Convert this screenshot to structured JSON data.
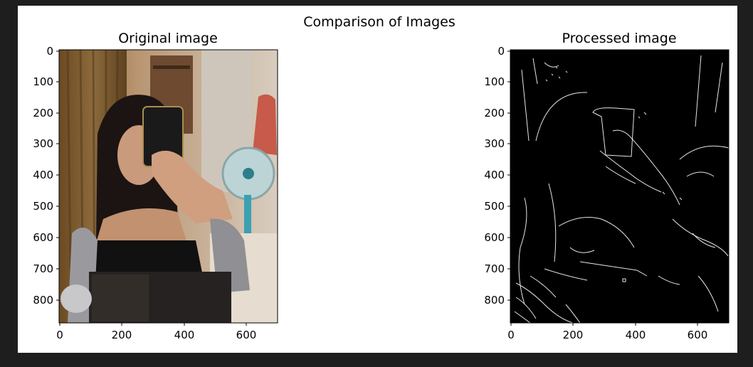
{
  "figure": {
    "suptitle": "Comparison of Images",
    "panels": [
      {
        "title": "Original image",
        "kind": "photo",
        "image_description_icon": "photo-placeholder",
        "x_ticks": [
          "0",
          "200",
          "400",
          "600"
        ],
        "y_ticks": [
          "0",
          "100",
          "200",
          "300",
          "400",
          "500",
          "600",
          "700",
          "800"
        ]
      },
      {
        "title": "Processed image",
        "kind": "edges",
        "x_ticks": [
          "0",
          "200",
          "400",
          "600"
        ],
        "y_ticks": [
          "0",
          "100",
          "200",
          "300",
          "400",
          "500",
          "600",
          "700",
          "800"
        ]
      }
    ]
  },
  "colors": {
    "window_bg": "#1e1e1e",
    "figure_bg": "#ffffff",
    "edge_bg": "#000000",
    "edge_line": "#e6e6e6"
  }
}
